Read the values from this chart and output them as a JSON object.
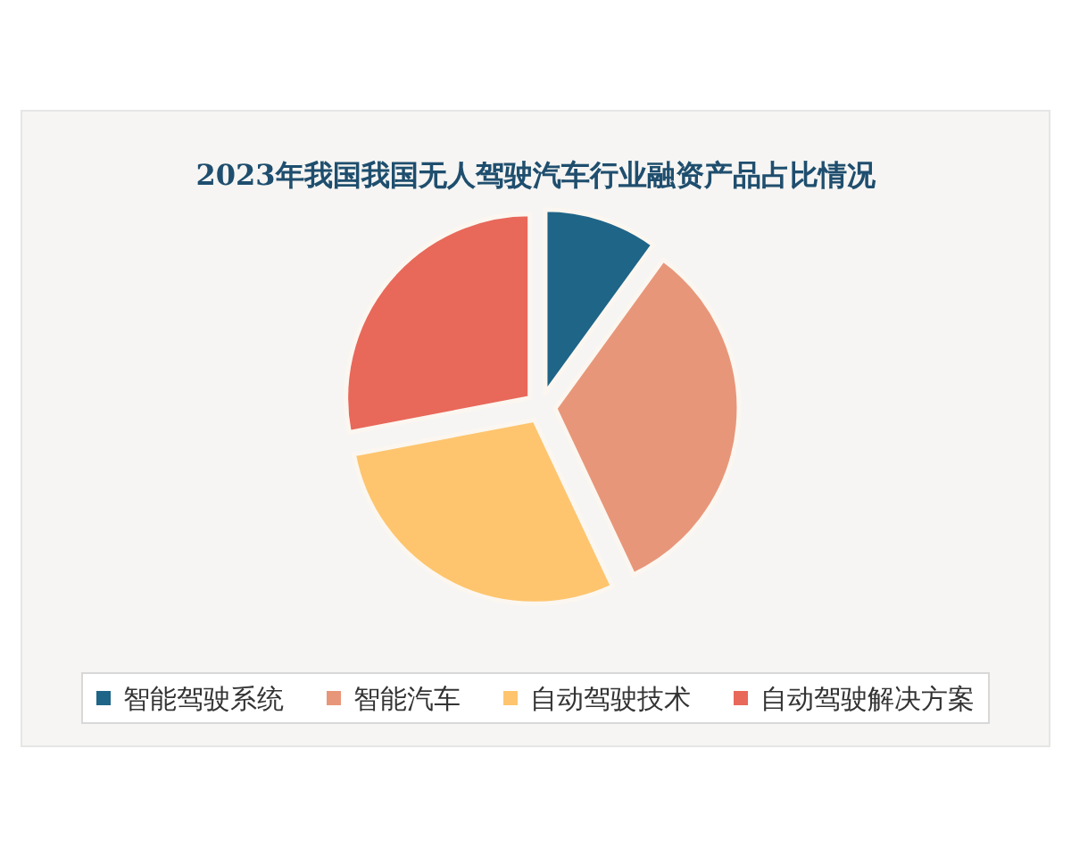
{
  "chart_data": {
    "type": "pie",
    "title": "2023年我国我国无人驾驶汽车行业融资产品占比情况",
    "categories": [
      "智能驾驶系统",
      "智能汽车",
      "自动驾驶技术",
      "自动驾驶解决方案"
    ],
    "values": [
      10,
      33,
      29,
      28
    ],
    "colors": [
      "#1f6587",
      "#e8967a",
      "#fec56e",
      "#e8685a"
    ],
    "legend": "bottom"
  }
}
